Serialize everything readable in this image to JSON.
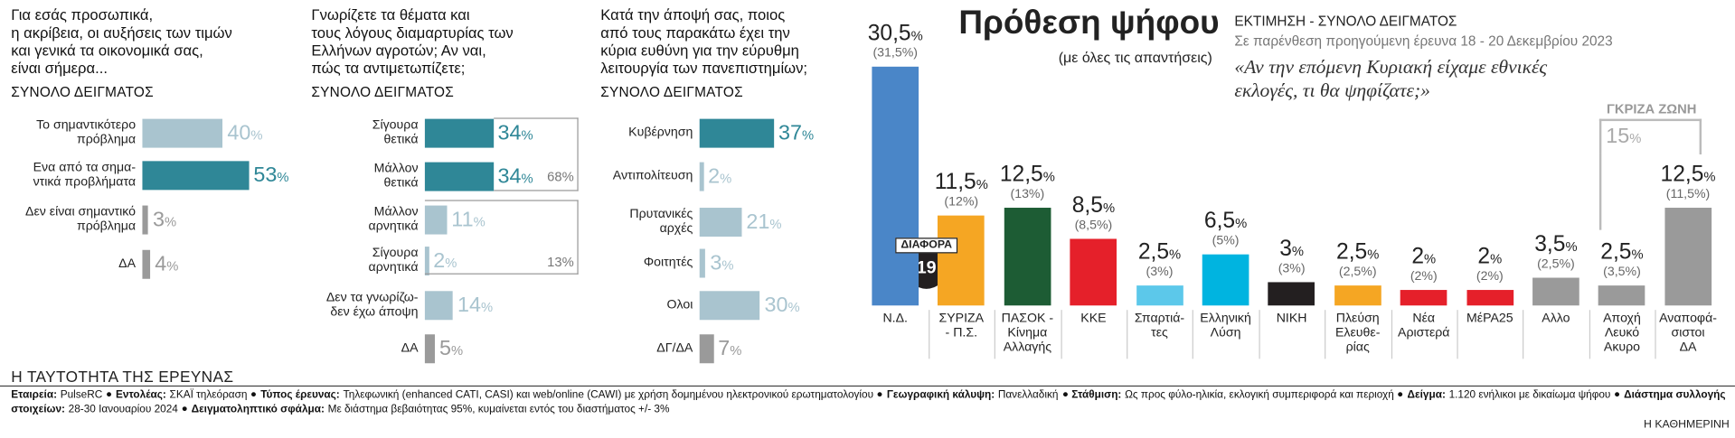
{
  "chart_data": [
    {
      "type": "barh",
      "title": "Για εσάς προσωπικά,\nη ακρίβεια, οι αυξήσεις των τιμών\nκαι γενικά τα οικονομικά σας,\nείναι σήμερα...",
      "subtitle": "ΣΥΝΟΛΟ ΔΕΙΓΜΑΤΟΣ",
      "categories": [
        "Το σημαντικότερο\nπρόβλημα",
        "Ενα από τα σημα-\nντικά προβλήματα",
        "Δεν είναι σημαντικό\nπρόβλημα",
        "ΔΑ"
      ],
      "values": [
        40,
        53,
        3,
        4
      ],
      "value_labels": [
        "40%",
        "53%",
        "3%",
        "4%"
      ],
      "colors": [
        "#a9c4cf",
        "#2f8797",
        "#9a9a9a",
        "#9a9a9a"
      ]
    },
    {
      "type": "barh",
      "title": "Γνωρίζετε τα θέματα και\nτους λόγους διαμαρτυρίας των\nΕλλήνων αγροτών; Αν ναι,\nπώς τα αντιμετωπίζετε;",
      "subtitle": "ΣΥΝΟΛΟ ΔΕΙΓΜΑΤΟΣ",
      "categories": [
        "Σίγουρα\nθετικά",
        "Μάλλον\nθετικά",
        "Μάλλον\nαρνητικά",
        "Σίγουρα\nαρνητικά",
        "Δεν τα γνωρίζω-\nδεν έχω άποψη",
        "ΔΑ"
      ],
      "values": [
        34,
        34,
        11,
        2,
        14,
        5
      ],
      "value_labels": [
        "34%",
        "34%",
        "11%",
        "2%",
        "14%",
        "5%"
      ],
      "colors": [
        "#2f8797",
        "#2f8797",
        "#a9c4cf",
        "#a9c4cf",
        "#a9c4cf",
        "#9a9a9a"
      ],
      "annotations": [
        "68%",
        "13%"
      ]
    },
    {
      "type": "barh",
      "title": "Κατά την άποψή σας, ποιος\nαπό τους παρακάτω έχει την\nκύρια ευθύνη για την εύρυθμη\nλειτουργία των πανεπιστημίων;",
      "subtitle": "ΣΥΝΟΛΟ ΔΕΙΓΜΑΤΟΣ",
      "categories": [
        "Κυβέρνηση",
        "Αντιπολίτευση",
        "Πρυτανικές\nαρχές",
        "Φοιτητές",
        "Ολοι",
        "ΔΓ/ΔΑ"
      ],
      "values": [
        37,
        2,
        21,
        3,
        30,
        7
      ],
      "value_labels": [
        "37%",
        "2%",
        "21%",
        "3%",
        "30%",
        "7%"
      ],
      "colors": [
        "#2f8797",
        "#a9c4cf",
        "#a9c4cf",
        "#a9c4cf",
        "#a9c4cf",
        "#9a9a9a"
      ]
    },
    {
      "type": "bar",
      "title": "Πρόθεση ψήφου",
      "subtitle": "(με όλες τις απαντήσεις)",
      "notes": [
        "ΕΚΤΙΜΗΣΗ - ΣΥΝΟΛΟ ΔΕΙΓΜΑΤΟΣ",
        "Σε παρένθεση προηγούμενη έρευνα 18 - 20 Δεκεμβρίου 2023"
      ],
      "question": "«Αν την επόμενη Κυριακή είχαμε εθνικές\nεκλογές, τι θα ψηφίζατε;»",
      "categories": [
        "Ν.Δ.",
        "ΣΥΡΙΖΑ\n- Π.Σ.",
        "ΠΑΣΟΚ -\nΚίνημα\nΑλλαγής",
        "ΚΚΕ",
        "Σπαρτιά-\nτες",
        "Ελληνική\nΛύση",
        "ΝΙΚΗ",
        "Πλεύση\nΕλευθε-\nρίας",
        "Νέα\nΑριστερά",
        "ΜέΡΑ25",
        "Αλλο",
        "Αποχή\nΛευκό\nΑκυρο",
        "Αναποφά-\nσιστοι\nΔΑ"
      ],
      "values": [
        30.5,
        11.5,
        12.5,
        8.5,
        2.5,
        6.5,
        3,
        2.5,
        2,
        2,
        3.5,
        2.5,
        12.5
      ],
      "value_labels": [
        "30,5%",
        "11,5%",
        "12,5%",
        "8,5%",
        "2,5%",
        "6,5%",
        "3%",
        "2,5%",
        "2%",
        "2%",
        "3,5%",
        "2,5%",
        "12,5%"
      ],
      "previous": [
        31.5,
        12,
        13,
        8.5,
        3,
        5,
        3,
        2.5,
        2,
        2,
        2.5,
        3.5,
        11.5
      ],
      "previous_labels": [
        "(31,5%)",
        "(12%)",
        "(13%)",
        "(8,5%)",
        "(3%)",
        "(5%)",
        "(3%)",
        "(2,5%)",
        "(2%)",
        "(2%)",
        "(2,5%)",
        "(3,5%)",
        "(11,5%)"
      ],
      "colors": [
        "#4a86c8",
        "#f5a623",
        "#1d5c34",
        "#e5202a",
        "#5cc8ea",
        "#00b4e0",
        "#231f20",
        "#f5a623",
        "#e5202a",
        "#e5202a",
        "#9a9a9a",
        "#9a9a9a",
        "#9a9a9a"
      ],
      "difference": {
        "label": "ΔΙΑΦΟΡΑ",
        "value": 19
      },
      "grey_zone": {
        "label": "ΓΚΡΙΖΑ ΖΩΝΗ",
        "value_label": "15%"
      }
    }
  ],
  "footer": {
    "title": "Η ΤΑΥΤΟΤΗΤΑ ΤΗΣ ΕΡΕΥΝΑΣ",
    "items": [
      {
        "label": "Εταιρεία:",
        "text": "PulseRC"
      },
      {
        "label": "Εντολέας:",
        "text": "ΣΚΑΪ τηλεόραση"
      },
      {
        "label": "Τύπος έρευνας:",
        "text": "Τηλεφωνική (enhanced CATI, CASI) και web/online (CAWI) με χρήση δομημένου ηλεκτρονικού ερωτηματολογίου"
      },
      {
        "label": "Γεωγραφική κάλυψη:",
        "text": "Πανελλαδική"
      },
      {
        "label": "Στάθμιση:",
        "text": "Ως προς φύλο-ηλικία, εκλογική συμπεριφορά και περιοχή"
      },
      {
        "label": "Δείγμα:",
        "text": "1.120 ενήλικοι με δικαίωμα ψήφου"
      },
      {
        "label": "Διάστημα συλλογής στοιχείων:",
        "text": "28-30 Ιανουαρίου 2024"
      },
      {
        "label": "Δειγματοληπτικό σφάλμα:",
        "text": "Με διάστημα βεβαιότητας 95%, κυμαίνεται εντός του διαστήματος +/- 3%"
      }
    ],
    "source": "Η ΚΑΘΗΜΕΡΙΝΗ"
  }
}
